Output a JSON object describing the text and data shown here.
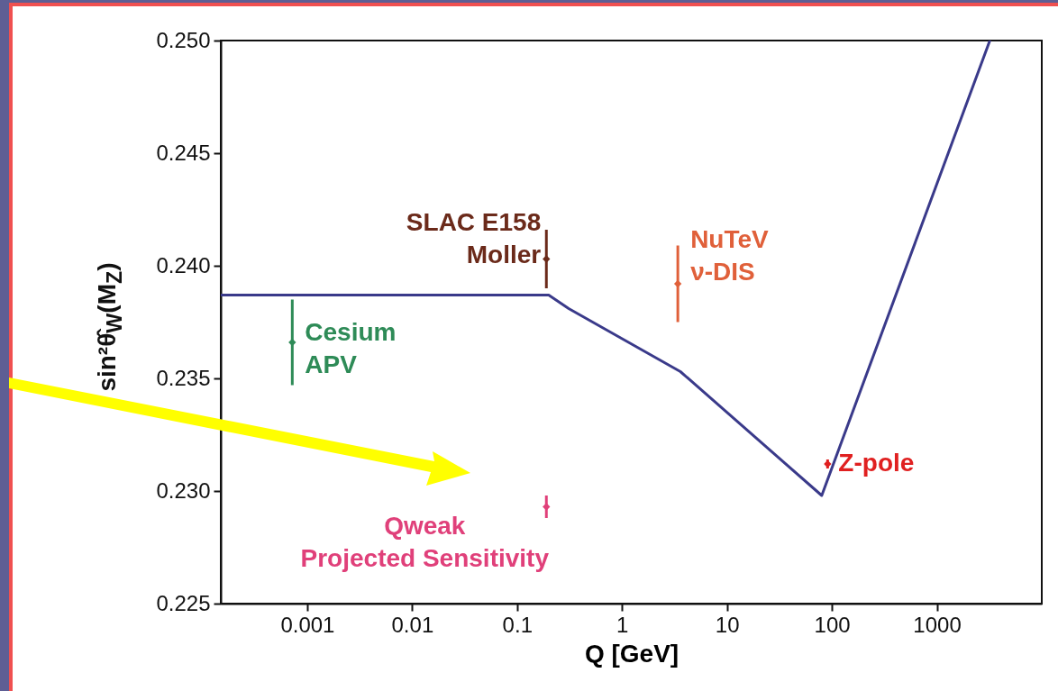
{
  "chart_data": {
    "type": "line",
    "xlabel": "Q [GeV]",
    "ylabel": "sin²θ̂$_{W}$(M$_{Z}$)",
    "log": "x",
    "xlim": [
      0.00015,
      10000
    ],
    "xticks": [
      0.001,
      0.01,
      0.1,
      1,
      10,
      100,
      1000
    ],
    "ylim": [
      0.225,
      0.25
    ],
    "yticks": [
      {
        "value": 0.225,
        "label": "0.225"
      },
      {
        "value": 0.23,
        "label": "0.230"
      },
      {
        "value": 0.235,
        "label": "0.235"
      },
      {
        "value": 0.24,
        "label": "0.240"
      },
      {
        "value": 0.245,
        "label": "0.245"
      },
      {
        "value": 0.25,
        "label": "0.250"
      }
    ],
    "grid": false,
    "line_style": "solid",
    "series": [
      {
        "type": "line",
        "color": "#3a3a8a",
        "x": [
          0.00015,
          0.2,
          0.31,
          3.6,
          80,
          3200
        ],
        "values": [
          0.2387,
          0.2387,
          0.2381,
          0.2353,
          0.2298,
          0.25
        ]
      },
      {
        "type": "scatter",
        "name": "Cesium\nAPV",
        "color": "#2e8b57",
        "marker": "diamond",
        "x": [
          0.00072
        ],
        "values": [
          0.2366
        ],
        "errors": [
          0.0019
        ]
      },
      {
        "type": "scatter",
        "name": "SLAC E158\nMoller",
        "color": "#6b2a1a",
        "marker": "diamond",
        "x": [
          0.19
        ],
        "values": [
          0.2403
        ],
        "errors": [
          0.0013
        ]
      },
      {
        "type": "scatter",
        "name": "NuTeV\nν-DIS",
        "color": "#e0603a",
        "marker": "diamond",
        "x": [
          3.4
        ],
        "values": [
          0.2392
        ],
        "errors": [
          0.0017
        ]
      },
      {
        "type": "scatter",
        "name": "Z-pole",
        "color": "#e02020",
        "marker": "diamond",
        "x": [
          91
        ],
        "values": [
          0.2312
        ],
        "errors": [
          0.0002
        ]
      },
      {
        "type": "scatter",
        "name": "Qweak\nProjected Sensitivity",
        "color": "#e0407a",
        "marker": "diamond",
        "x": [
          0.19
        ],
        "values": [
          0.2293
        ],
        "errors": [
          0.0005
        ]
      }
    ]
  }
}
